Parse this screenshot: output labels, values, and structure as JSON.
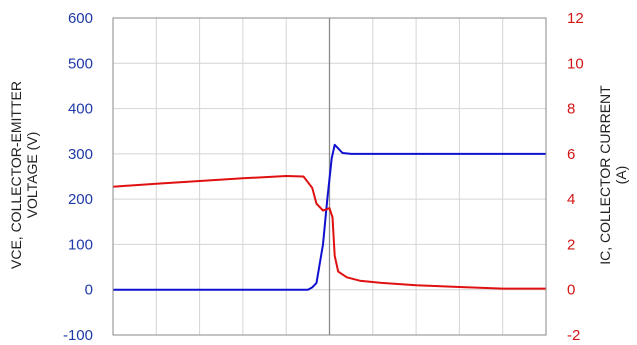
{
  "chart_data": {
    "type": "line",
    "grid": true,
    "left_axis": {
      "label_lines": [
        "VCE, COLLECTOR-EMITTER",
        "VOLTAGE (V)"
      ],
      "ylim": [
        -100,
        600
      ],
      "ticks": [
        -100,
        0,
        100,
        200,
        300,
        400,
        500,
        600
      ],
      "tick_color": "#1f3aa8"
    },
    "right_axis": {
      "label_lines": [
        "IC, COLLECTOR CURRENT",
        "(A)"
      ],
      "ylim": [
        -2,
        12
      ],
      "ticks": [
        -2,
        0,
        2,
        4,
        6,
        8,
        10,
        12
      ],
      "tick_color": "#d21414"
    },
    "xlim": [
      0,
      100
    ],
    "x_gridlines": 10,
    "series": [
      {
        "axis": "left",
        "color": "#1010d0",
        "x": [
          0,
          10,
          20,
          30,
          40,
          45,
          46,
          47,
          48.5,
          49.5,
          50.5,
          51.2,
          52,
          53,
          55,
          60,
          70,
          80,
          90,
          100
        ],
        "y": [
          0,
          0,
          0,
          0,
          0,
          0,
          5,
          15,
          100,
          200,
          290,
          320,
          312,
          302,
          300,
          300,
          300,
          300,
          300,
          300
        ]
      },
      {
        "axis": "right",
        "color": "#e01010",
        "x": [
          0,
          10,
          20,
          30,
          40,
          44,
          46,
          47,
          48.5,
          50,
          50.7,
          51.2,
          52,
          54,
          57,
          62,
          70,
          80,
          90,
          100
        ],
        "y": [
          4.55,
          4.68,
          4.8,
          4.92,
          5.02,
          5.0,
          4.5,
          3.8,
          3.5,
          3.6,
          3.2,
          1.5,
          0.8,
          0.55,
          0.4,
          0.3,
          0.2,
          0.12,
          0.05,
          0.05
        ]
      }
    ]
  }
}
